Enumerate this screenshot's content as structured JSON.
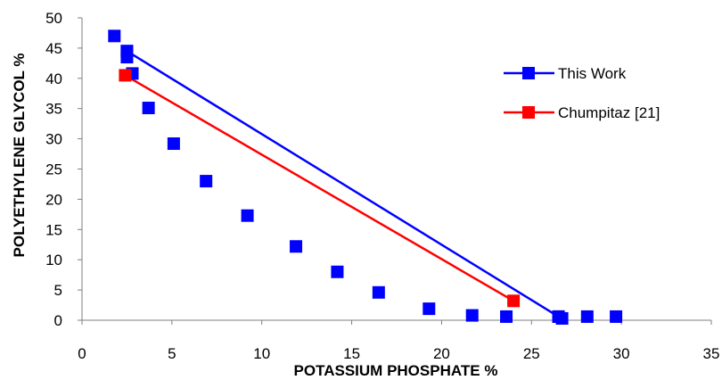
{
  "chart_data": {
    "type": "scatter",
    "xlabel": "POTASSIUM PHOSPHATE %",
    "ylabel": "POLYETHYLENE GLYCOL %",
    "xlim": [
      0,
      35
    ],
    "ylim": [
      0,
      50
    ],
    "xticks": [
      "0",
      "5",
      "10",
      "15",
      "20",
      "25",
      "30",
      "35"
    ],
    "yticks": [
      "0",
      "5",
      "10",
      "15",
      "20",
      "25",
      "30",
      "35",
      "40",
      "45",
      "50"
    ],
    "grid": false,
    "legend_position": "right",
    "binodal_points": [
      [
        1.8,
        47.0
      ],
      [
        2.5,
        44.5
      ],
      [
        2.5,
        43.5
      ],
      [
        2.8,
        40.8
      ],
      [
        3.7,
        35.1
      ],
      [
        5.1,
        29.2
      ],
      [
        6.9,
        23.0
      ],
      [
        9.2,
        17.3
      ],
      [
        11.9,
        12.2
      ],
      [
        14.2,
        8.0
      ],
      [
        16.5,
        4.6
      ],
      [
        19.3,
        1.9
      ],
      [
        21.7,
        0.8
      ],
      [
        23.6,
        0.6
      ],
      [
        26.5,
        0.6
      ],
      [
        26.7,
        0.3
      ],
      [
        28.1,
        0.6
      ],
      [
        29.7,
        0.6
      ]
    ],
    "series": [
      {
        "name": "This Work",
        "color": "#0000FF",
        "marker": "square",
        "points": [
          [
            2.5,
            44.5
          ],
          [
            26.5,
            0.6
          ]
        ]
      },
      {
        "name": "Chumpitaz [21]",
        "color": "#FF0000",
        "marker": "square",
        "points": [
          [
            2.4,
            40.5
          ],
          [
            24.0,
            3.2
          ]
        ]
      }
    ],
    "binodal_color": "#0000FF"
  }
}
